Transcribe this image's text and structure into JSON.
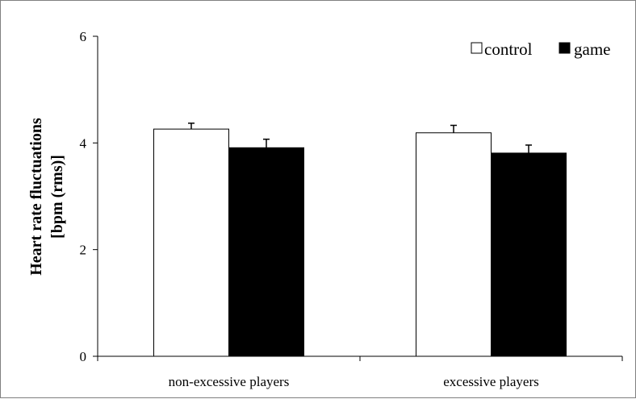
{
  "chart_data": {
    "type": "bar",
    "categories": [
      "non-excessive players",
      "excessive players"
    ],
    "series": [
      {
        "name": "control",
        "values": [
          4.26,
          4.19
        ],
        "errors": [
          0.11,
          0.14
        ],
        "color": "#ffffff"
      },
      {
        "name": "game",
        "values": [
          3.91,
          3.81
        ],
        "errors": [
          0.16,
          0.15
        ],
        "color": "#000000"
      }
    ],
    "ylabel_lines": [
      "Heart rate fluctuations",
      "[bpm (rms)]"
    ],
    "yticks": [
      0,
      2,
      4,
      6
    ],
    "ylim": [
      0,
      6
    ],
    "grid": false,
    "legend_position": "top-right"
  }
}
